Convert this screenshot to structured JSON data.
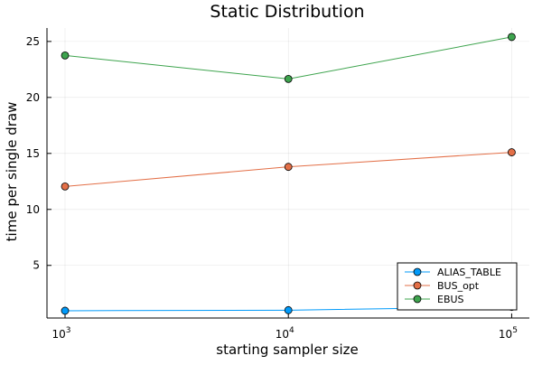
{
  "chart_data": {
    "type": "line",
    "title": "Static Distribution",
    "xlabel": "starting sampler size",
    "ylabel": "time per single draw",
    "x_scale": "log10",
    "x": [
      1000,
      10000,
      100000
    ],
    "x_tick_labels": [
      {
        "base": "10",
        "exp": "3"
      },
      {
        "base": "10",
        "exp": "4"
      },
      {
        "base": "10",
        "exp": "5"
      }
    ],
    "y_ticks": [
      5,
      10,
      15,
      20,
      25
    ],
    "y_tick_labels": [
      "5",
      "10",
      "15",
      "20",
      "25"
    ],
    "xlim": [
      830,
      120000
    ],
    "ylim": [
      0.3,
      26.2
    ],
    "grid": true,
    "legend_position": "bottom-right",
    "series": [
      {
        "name": "ALIAS_TABLE",
        "color": "#009AFA",
        "values": [
          0.95,
          1.0,
          1.3
        ]
      },
      {
        "name": "BUS_opt",
        "color": "#E36F47",
        "values": [
          12.05,
          13.8,
          15.1
        ]
      },
      {
        "name": "EBUS",
        "color": "#3EA44E",
        "values": [
          23.75,
          21.65,
          25.4
        ]
      }
    ]
  }
}
